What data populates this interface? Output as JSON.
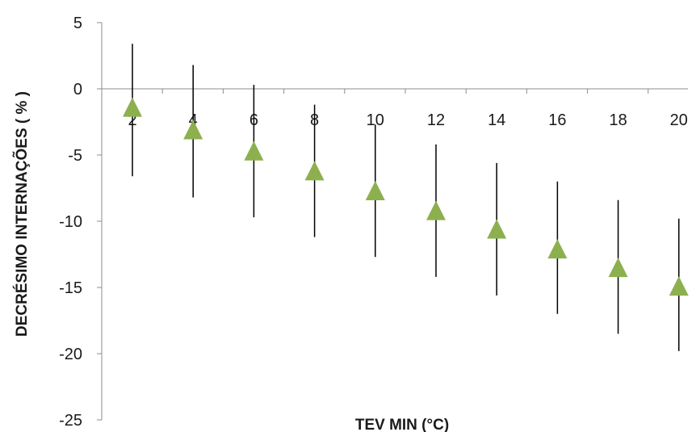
{
  "chart_data": {
    "type": "scatter",
    "title": "",
    "xlabel": "TEV MIN (°C)",
    "ylabel": "DECRÉSIMO INTERNAÇÕES ( % )",
    "x": [
      2,
      4,
      6,
      8,
      10,
      12,
      14,
      16,
      18,
      20
    ],
    "x_tick_labels": [
      "2",
      "4",
      "6",
      "8",
      "10",
      "12",
      "14",
      "16",
      "18",
      "20"
    ],
    "y_tick_labels": [
      "5",
      "0",
      "-5",
      "-10",
      "-15",
      "-20",
      "-25"
    ],
    "y_ticks": [
      5,
      0,
      -5,
      -10,
      -15,
      -20,
      -25
    ],
    "ylim": [
      -25,
      5
    ],
    "series": [
      {
        "values": [
          -1.5,
          -3.2,
          -4.8,
          -6.3,
          -7.8,
          -9.3,
          -10.7,
          -12.2,
          -13.6,
          -15.0
        ],
        "upper": [
          3.4,
          1.8,
          0.3,
          -1.2,
          -2.7,
          -4.2,
          -5.6,
          -7.0,
          -8.4,
          -9.8
        ],
        "lower": [
          -6.6,
          -8.2,
          -9.7,
          -11.2,
          -12.7,
          -14.2,
          -15.6,
          -17.0,
          -18.5,
          -19.8
        ],
        "color": "#8db04f"
      }
    ],
    "marker": "triangle",
    "error_bar_color": "#000000",
    "grid": false,
    "legend": "none"
  }
}
